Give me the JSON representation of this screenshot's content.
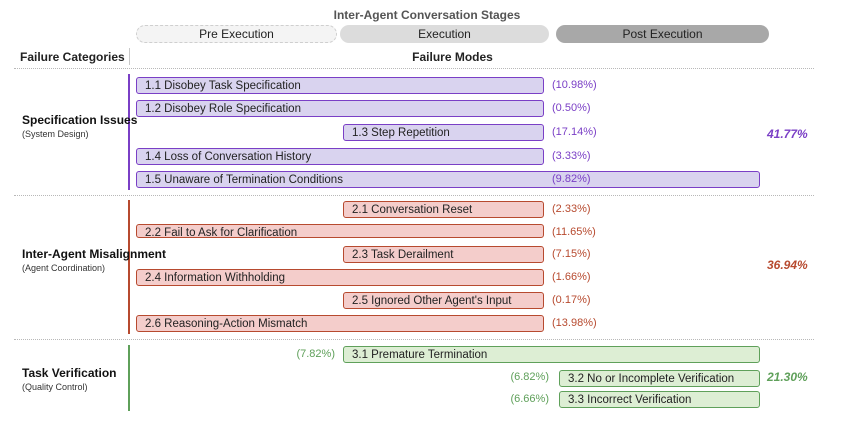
{
  "title": "Inter-Agent Conversation Stages",
  "stages": {
    "pre": "Pre Execution",
    "exe": "Execution",
    "post": "Post Execution"
  },
  "headers": {
    "categories": "Failure Categories",
    "modes": "Failure Modes"
  },
  "colors": {
    "spec": "#7a3fc6",
    "misalign": "#b74a2f",
    "verify": "#5fa05a"
  },
  "categories": [
    {
      "title": "Specification Issues",
      "subtitle": "(System Design)",
      "total": "41.77%",
      "modes": [
        {
          "label": "1.1 Disobey Task Specification",
          "pct": "(10.98%)",
          "value": 10.98,
          "stage_start": "Pre Execution",
          "stage_end": "Execution"
        },
        {
          "label": "1.2 Disobey Role Specification",
          "pct": "(0.50%)",
          "value": 0.5,
          "stage_start": "Pre Execution",
          "stage_end": "Execution"
        },
        {
          "label": "1.3 Step Repetition",
          "pct": "(17.14%)",
          "value": 17.14,
          "stage_start": "Execution",
          "stage_end": "Execution"
        },
        {
          "label": "1.4 Loss of Conversation History",
          "pct": "(3.33%)",
          "value": 3.33,
          "stage_start": "Pre Execution",
          "stage_end": "Execution"
        },
        {
          "label": "1.5 Unaware of Termination Conditions",
          "pct": "(9.82%)",
          "value": 9.82,
          "stage_start": "Pre Execution",
          "stage_end": "Post Execution"
        }
      ]
    },
    {
      "title": "Inter-Agent Misalignment",
      "subtitle": "(Agent Coordination)",
      "total": "36.94%",
      "modes": [
        {
          "label": "2.1 Conversation Reset",
          "pct": "(2.33%)",
          "value": 2.33,
          "stage_start": "Execution",
          "stage_end": "Execution"
        },
        {
          "label": "2.2 Fail to Ask for Clarification",
          "pct": "(11.65%)",
          "value": 11.65,
          "stage_start": "Pre Execution",
          "stage_end": "Execution"
        },
        {
          "label": "2.3 Task Derailment",
          "pct": "(7.15%)",
          "value": 7.15,
          "stage_start": "Execution",
          "stage_end": "Execution"
        },
        {
          "label": "2.4 Information Withholding",
          "pct": "(1.66%)",
          "value": 1.66,
          "stage_start": "Pre Execution",
          "stage_end": "Execution"
        },
        {
          "label": "2.5 Ignored Other Agent's Input",
          "pct": "(0.17%)",
          "value": 0.17,
          "stage_start": "Execution",
          "stage_end": "Execution"
        },
        {
          "label": "2.6 Reasoning-Action Mismatch",
          "pct": "(13.98%)",
          "value": 13.98,
          "stage_start": "Pre Execution",
          "stage_end": "Execution"
        }
      ]
    },
    {
      "title": "Task Verification",
      "subtitle": "(Quality Control)",
      "total": "21.30%",
      "modes": [
        {
          "label": "3.1  Premature Termination",
          "pct": "(7.82%)",
          "value": 7.82,
          "stage_start": "Execution",
          "stage_end": "Post Execution"
        },
        {
          "label": "3.2 No or Incomplete Verification",
          "pct": "(6.82%)",
          "value": 6.82,
          "stage_start": "Post Execution",
          "stage_end": "Post Execution"
        },
        {
          "label": "3.3 Incorrect Verification",
          "pct": "(6.66%)",
          "value": 6.66,
          "stage_start": "Post Execution",
          "stage_end": "Post Execution"
        }
      ]
    }
  ]
}
